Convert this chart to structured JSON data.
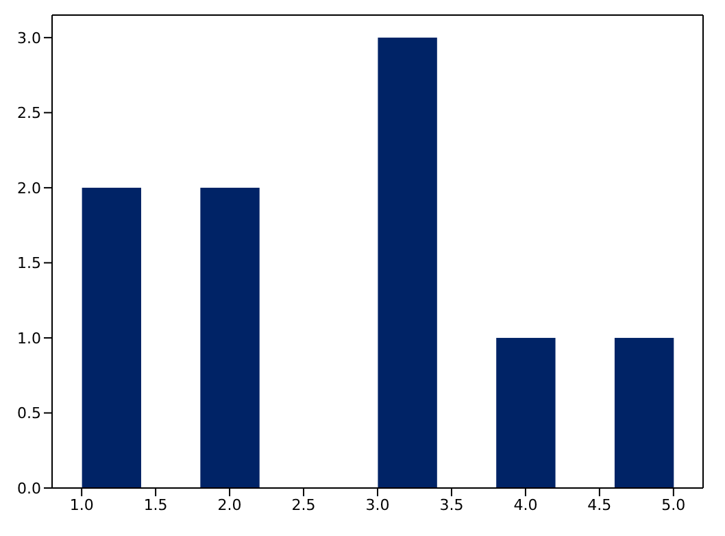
{
  "chart_data": {
    "type": "histogram",
    "bins": [
      1.0,
      1.4,
      1.8,
      2.2,
      2.6,
      3.0,
      3.4,
      3.8,
      4.2,
      4.6,
      5.0
    ],
    "values": [
      2,
      0,
      2,
      0,
      0,
      3,
      0,
      1,
      0,
      1
    ],
    "color": "#002366",
    "xlim": [
      0.8,
      5.2
    ],
    "xticks": [
      {
        "value": 1,
        "label": "1.0"
      },
      1.5,
      {
        "value": 2,
        "label": "2.0"
      },
      2.5,
      {
        "value": 3,
        "label": "3.0"
      },
      3.5,
      {
        "value": 4,
        "label": "4.0"
      },
      4.5,
      {
        "value": 5,
        "label": "5.0"
      }
    ],
    "ylim": [
      0,
      3.15
    ],
    "yticks": [
      {
        "value": 0,
        "label": "0.0"
      },
      0.5,
      {
        "value": 1,
        "label": "1.0"
      },
      1.5,
      {
        "value": 2,
        "label": "2.0"
      },
      2.5,
      {
        "value": 3,
        "label": "3.0"
      }
    ]
  }
}
